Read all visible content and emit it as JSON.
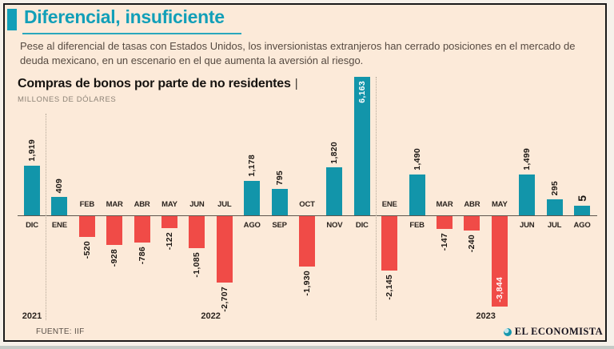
{
  "header": {
    "title": "Diferencial, insuficiente",
    "intro": "Pese al diferencial de tasas con Estados Unidos, los inversionistas extranjeros han cerrado posiciones en el mercado de deuda mexicano, en un escenario en el que aumenta la aversión al riesgo."
  },
  "chart": {
    "title": "Compras de bonos por parte de no residentes",
    "title_divider": "|",
    "unit": "MILLONES DE DÓLARES"
  },
  "chart_data": {
    "type": "bar",
    "title": "Compras de bonos por parte de no residentes",
    "ylabel": "MILLONES DE DÓLARES",
    "grid": false,
    "legend": "none",
    "categories": [
      "DIC",
      "ENE",
      "FEB",
      "MAR",
      "ABR",
      "MAY",
      "JUN",
      "JUL",
      "AGO",
      "SEP",
      "OCT",
      "NOV",
      "DIC",
      "ENE",
      "FEB",
      "MAR",
      "ABR",
      "MAY",
      "JUN",
      "JUL",
      "AGO"
    ],
    "values": [
      1919,
      409,
      -520,
      -928,
      -786,
      -122,
      -1085,
      -2707,
      1178,
      795,
      -1930,
      1820,
      6163,
      -2145,
      1490,
      -147,
      -240,
      -3844,
      1499,
      295,
      5
    ],
    "value_labels": [
      "1,919",
      "409",
      "-520",
      "-928",
      "-786",
      "-122",
      "-1,085",
      "-2,707",
      "1,178",
      "795",
      "-1,930",
      "1,820",
      "6,163",
      "-2,145",
      "1,490",
      "-147",
      "-240",
      "-3,844",
      "1,499",
      "295",
      "5"
    ],
    "inside_label_indices": [
      12,
      17
    ],
    "year_groups": [
      {
        "label": "2021",
        "from": 0,
        "to": 0
      },
      {
        "label": "2022",
        "from": 1,
        "to": 12
      },
      {
        "label": "2023",
        "from": 13,
        "to": 20
      }
    ],
    "positive_color": "#1295aa",
    "negative_color": "#f04b47"
  },
  "footer": {
    "source": "FUENTE: IIF",
    "brand": "EL ECONOMISTA"
  },
  "colors": {
    "background": "#fcead9",
    "accent_teal": "#129fb8",
    "bar_positive": "#1295aa",
    "bar_negative": "#f04b47",
    "frame": "#1a1a1a"
  }
}
